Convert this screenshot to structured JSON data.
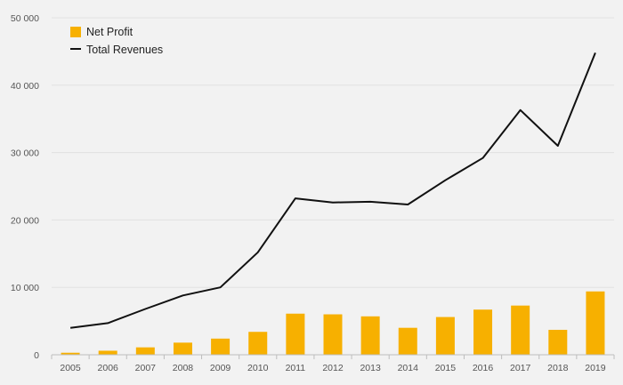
{
  "chart_data": {
    "type": "bar",
    "title": "",
    "xlabel": "",
    "ylabel": "",
    "categories": [
      "2005",
      "2006",
      "2007",
      "2008",
      "2009",
      "2010",
      "2011",
      "2012",
      "2013",
      "2014",
      "2015",
      "2016",
      "2017",
      "2018",
      "2019"
    ],
    "ylim": [
      0,
      50000
    ],
    "yticks": [
      0,
      10000,
      20000,
      30000,
      40000,
      50000
    ],
    "ytick_labels": [
      "0",
      "10 000",
      "20 000",
      "30 000",
      "40 000",
      "50 000"
    ],
    "grid": true,
    "legend_position": "top-left",
    "series": [
      {
        "name": "Net Profit",
        "type": "bar",
        "color": "#f7b000",
        "values": [
          300,
          600,
          1100,
          1800,
          2400,
          3400,
          6100,
          6000,
          5700,
          4000,
          5600,
          6700,
          7300,
          3700,
          9400
        ]
      },
      {
        "name": "Total Revenues",
        "type": "line",
        "color": "#111111",
        "values": [
          4000,
          4700,
          6800,
          8800,
          10000,
          15200,
          23200,
          22600,
          22700,
          22300,
          25900,
          29200,
          36300,
          31000,
          44800
        ]
      }
    ]
  }
}
